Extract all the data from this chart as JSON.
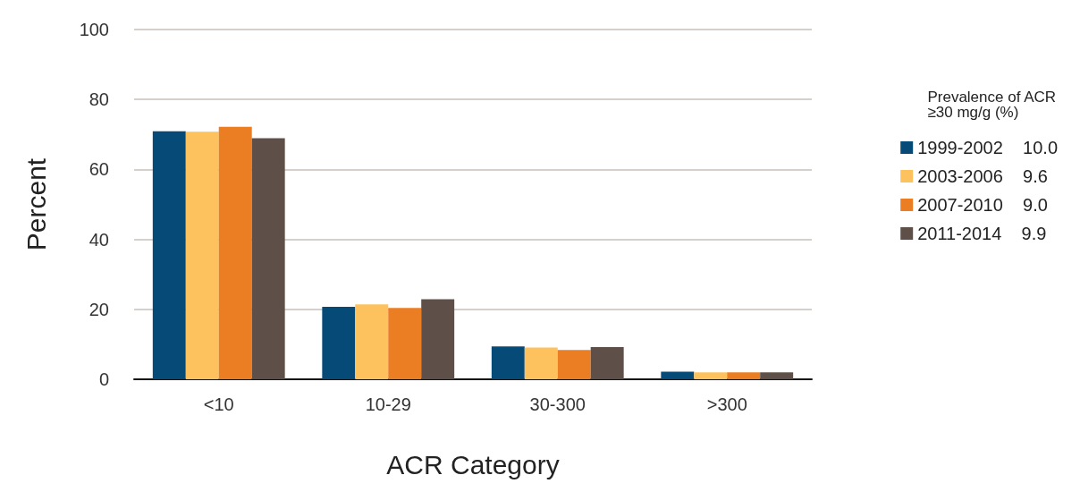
{
  "chart_data": {
    "type": "bar",
    "xlabel": "ACR Category",
    "ylabel": "Percent",
    "legend_title": "Prevalence of ACR\n≥30 mg/g (%)",
    "categories": [
      "<10",
      "10-29",
      "30-300",
      ">300"
    ],
    "series": [
      {
        "name": "1999-2002    10.0",
        "color": "#064a77",
        "values": [
          70.9,
          20.7,
          9.4,
          2.2
        ]
      },
      {
        "name": "2003-2006    9.6",
        "color": "#fdc25e",
        "values": [
          70.8,
          21.4,
          9.1,
          2.0
        ]
      },
      {
        "name": "2007-2010    9.0",
        "color": "#eb7d23",
        "values": [
          72.2,
          20.4,
          8.4,
          2.0
        ]
      },
      {
        "name": "2011-2014    9.9",
        "color": "#5e5048",
        "values": [
          68.9,
          22.9,
          9.2,
          2.0
        ]
      }
    ],
    "ylim": [
      0,
      100
    ],
    "yticks": [
      0,
      20,
      40,
      60,
      80,
      100
    ],
    "grid": "y",
    "legend": "right"
  }
}
